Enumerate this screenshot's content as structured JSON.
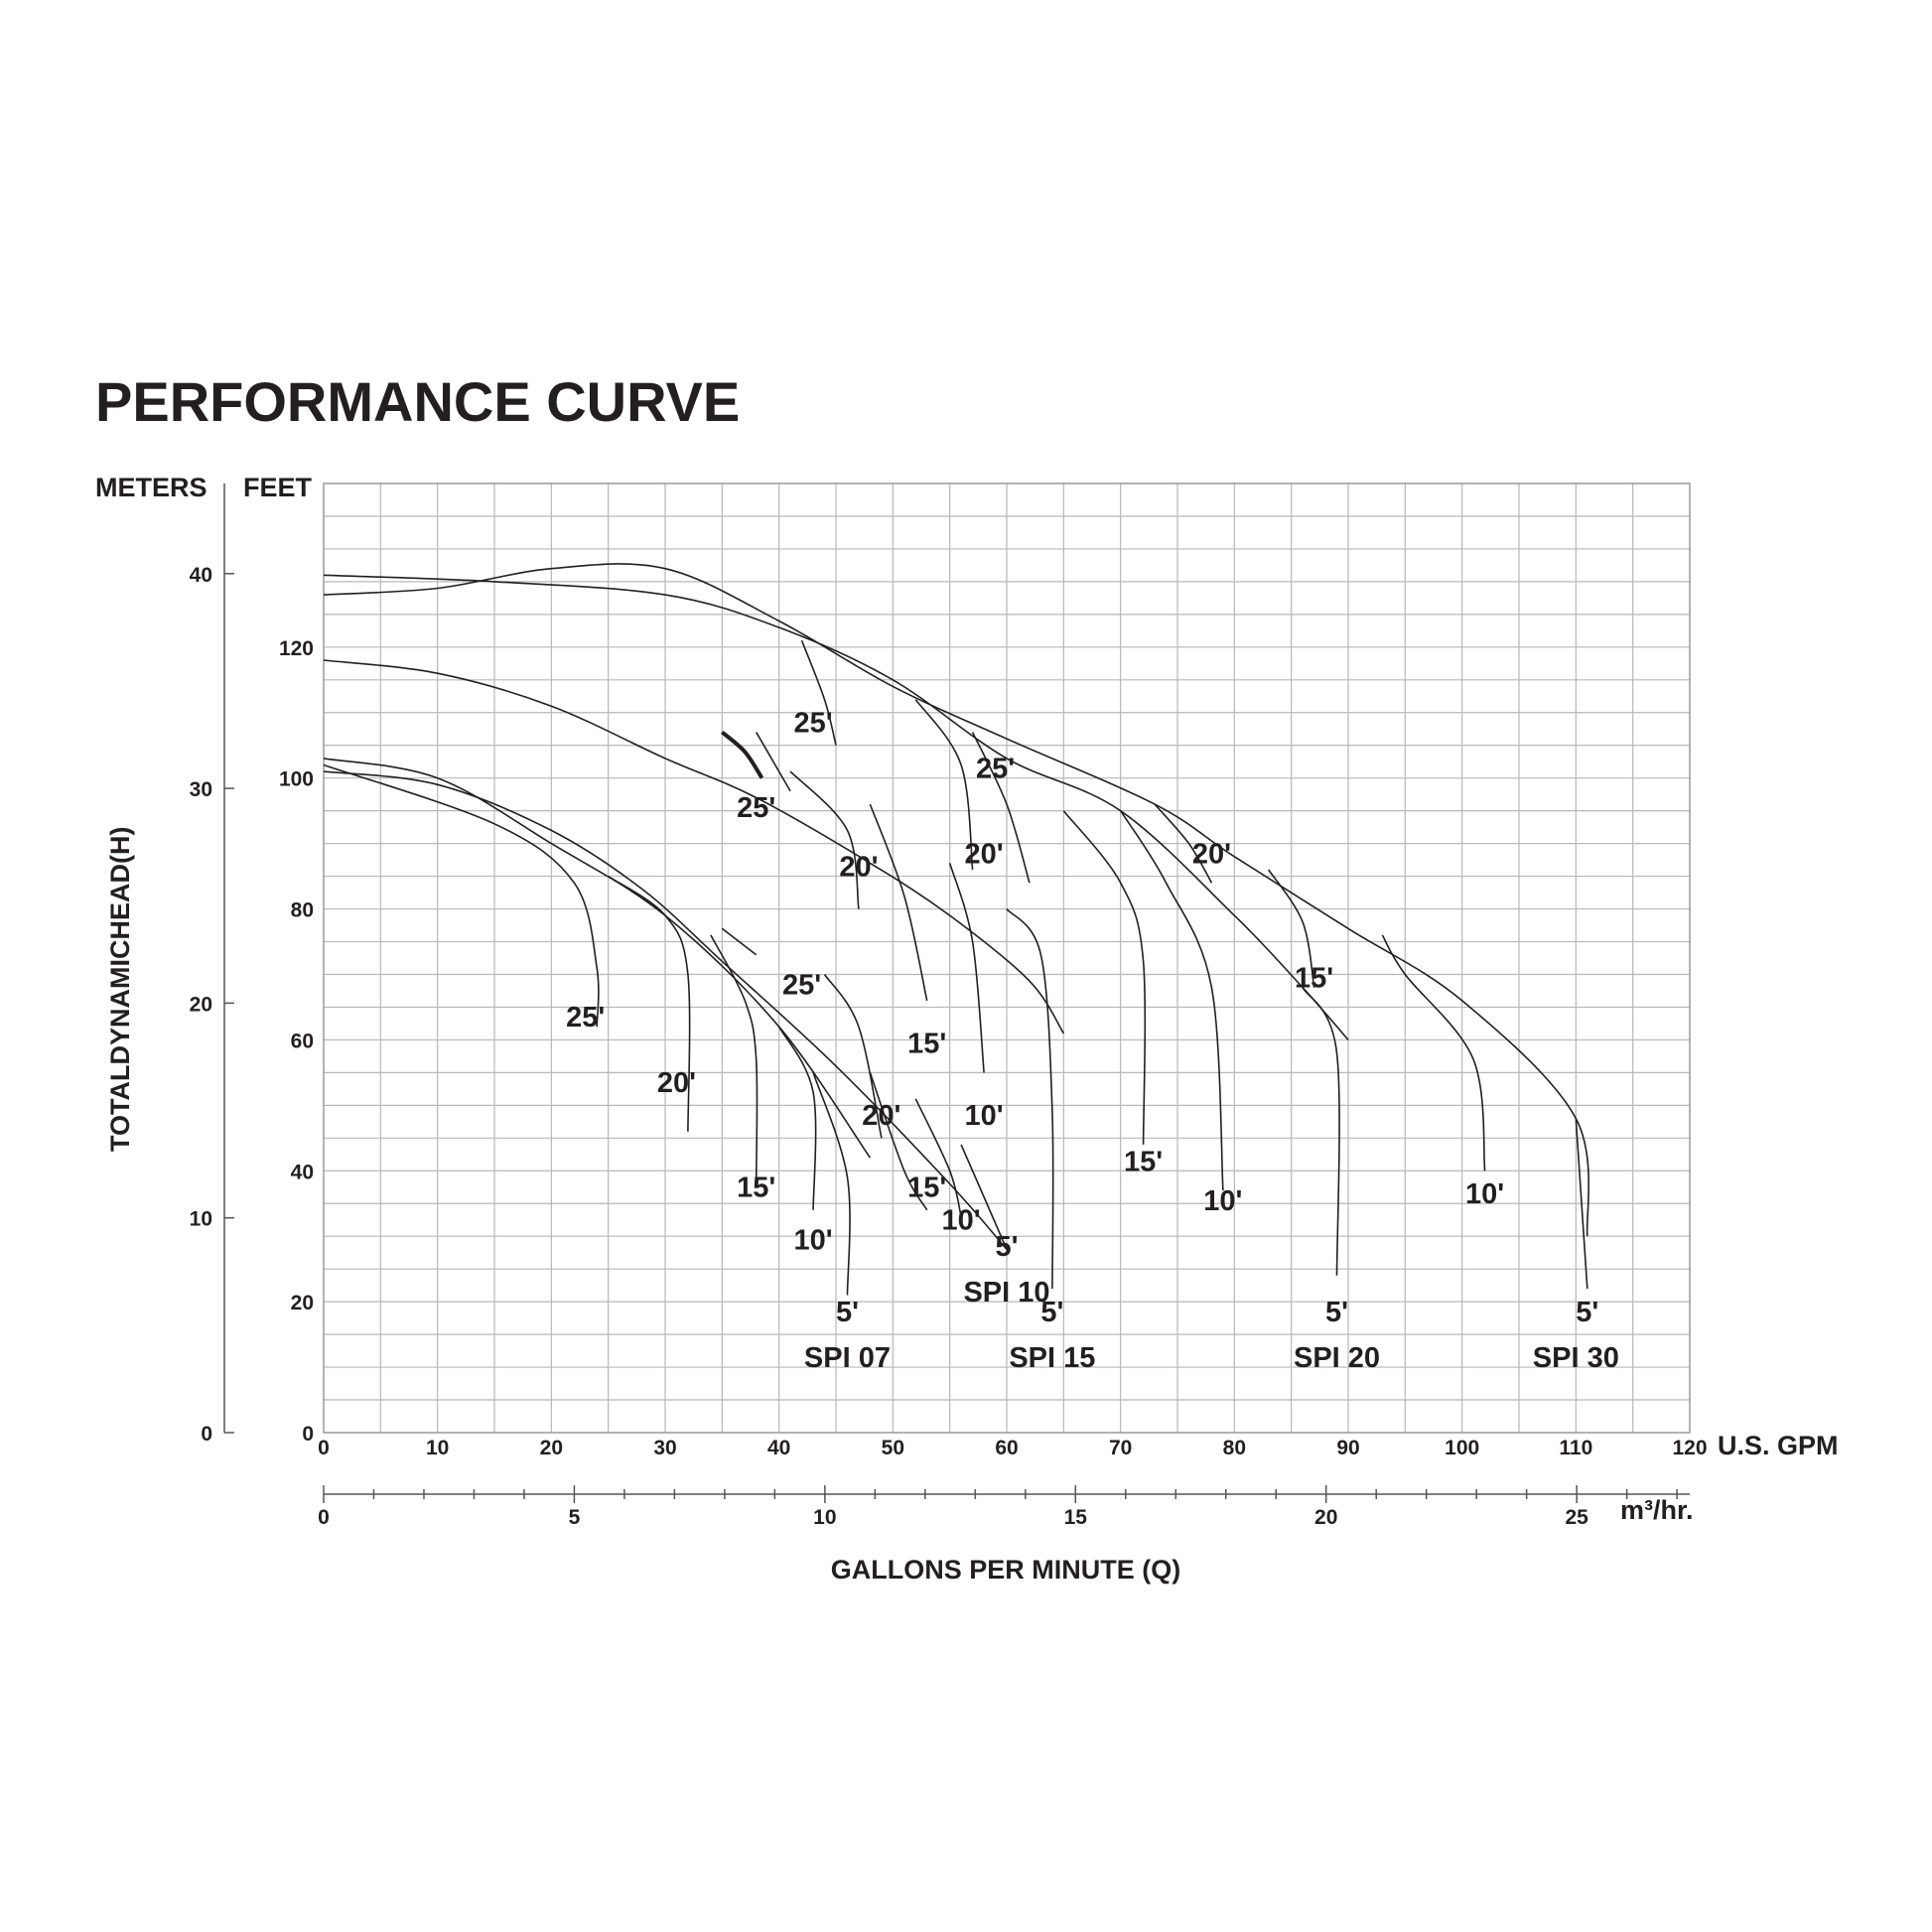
{
  "chart_data": {
    "type": "line",
    "title": "PERFORMANCE CURVE",
    "xlabel": "GALLONS PER MINUTE (Q)",
    "x_unit_primary": "U.S. GPM",
    "x_unit_secondary": "m³/hr.",
    "ylabel": "TOTALDYNAMICHEAD(H)",
    "y_head_meters": "METERS",
    "y_head_feet": "FEET",
    "xlim": [
      0,
      120
    ],
    "ylim_feet": [
      0,
      145
    ],
    "x_ticks": [
      "0",
      "10",
      "20",
      "30",
      "40",
      "50",
      "60",
      "70",
      "80",
      "90",
      "100",
      "110",
      "120"
    ],
    "x_ticks_m3": [
      "0",
      "5",
      "10",
      "15",
      "20",
      "25"
    ],
    "y_ticks_feet": [
      "0",
      "20",
      "40",
      "60",
      "80",
      "100",
      "120"
    ],
    "y_ticks_meters": [
      "0",
      "10",
      "20",
      "30",
      "40"
    ],
    "grid": true,
    "series": [
      {
        "name": "SPI 07",
        "points": [
          [
            0,
            103
          ],
          [
            10,
            100
          ],
          [
            20,
            90
          ],
          [
            30,
            79
          ],
          [
            40,
            62
          ],
          [
            48,
            42
          ]
        ]
      },
      {
        "name": "SPI 10",
        "points": [
          [
            0,
            101
          ],
          [
            10,
            99
          ],
          [
            20,
            92
          ],
          [
            28,
            83
          ],
          [
            35,
            72
          ],
          [
            45,
            56
          ],
          [
            55,
            38
          ],
          [
            60,
            28
          ]
        ]
      },
      {
        "name": "SPI 15",
        "points": [
          [
            0,
            118
          ],
          [
            10,
            116
          ],
          [
            20,
            111
          ],
          [
            30,
            103
          ],
          [
            38,
            97
          ],
          [
            48,
            87
          ],
          [
            55,
            79
          ],
          [
            62,
            69
          ],
          [
            65,
            61
          ]
        ]
      },
      {
        "name": "SPI 20",
        "points": [
          [
            0,
            131
          ],
          [
            15,
            130
          ],
          [
            30,
            128
          ],
          [
            40,
            123
          ],
          [
            50,
            115
          ],
          [
            60,
            103
          ],
          [
            70,
            95
          ],
          [
            80,
            79
          ],
          [
            86,
            68
          ],
          [
            90,
            60
          ]
        ]
      },
      {
        "name": "SPI 30",
        "points": [
          [
            0,
            128
          ],
          [
            10,
            129
          ],
          [
            20,
            132
          ],
          [
            30,
            132
          ],
          [
            40,
            124
          ],
          [
            50,
            114
          ],
          [
            60,
            106
          ],
          [
            73,
            96
          ],
          [
            80,
            88
          ],
          [
            90,
            77
          ],
          [
            100,
            66
          ],
          [
            110,
            48
          ],
          [
            111,
            30
          ]
        ]
      }
    ],
    "curve_labels": [
      "25'",
      "20'",
      "15'",
      "10'",
      "5'"
    ],
    "legend": "none"
  },
  "models": [
    "SPI 07",
    "SPI 10",
    "SPI 15",
    "SPI 20",
    "SPI 30"
  ]
}
